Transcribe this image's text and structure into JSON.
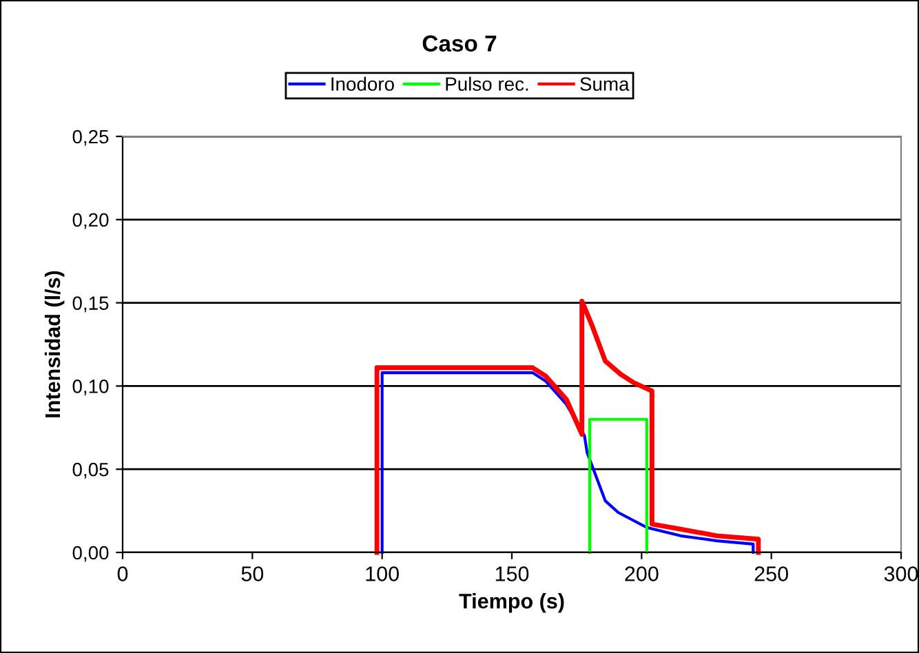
{
  "chart_data": {
    "type": "line",
    "title": "Caso 7",
    "xlabel": "Tiempo (s)",
    "ylabel": "Intensidad (l/s)",
    "xlim": [
      0,
      300
    ],
    "xticks": [
      0,
      50,
      100,
      150,
      200,
      250,
      300
    ],
    "ylim": [
      0,
      0.25
    ],
    "yticks": [
      {
        "value": 0,
        "label": "0,00"
      },
      {
        "value": 0.05,
        "label": "0,05"
      },
      {
        "value": 0.1,
        "label": "0,10"
      },
      {
        "value": 0.15,
        "label": "0,15"
      },
      {
        "value": 0.2,
        "label": "0,20"
      },
      {
        "value": 0.25,
        "label": "0,25"
      }
    ],
    "grid": "y",
    "legend": "top",
    "line_style": "solid",
    "marker": "none",
    "series": [
      {
        "name": "Inodoro",
        "color": "#0000ff",
        "x": [
          100,
          100,
          158,
          163,
          171,
          178,
          179,
          186,
          191,
          202,
          215,
          229,
          243,
          243
        ],
        "values": [
          0,
          0.108,
          0.108,
          0.103,
          0.089,
          0.07,
          0.06,
          0.031,
          0.024,
          0.015,
          0.01,
          0.007,
          0.005,
          0
        ]
      },
      {
        "name": "Pulso rec.",
        "color": "#00ff00",
        "x": [
          180,
          180,
          202,
          202
        ],
        "values": [
          0,
          0.08,
          0.08,
          0
        ]
      },
      {
        "name": "Suma",
        "color": "#ff0000",
        "x": [
          98,
          98,
          158,
          163,
          171,
          177,
          177,
          181,
          186,
          192,
          197,
          204,
          204,
          215,
          229,
          245,
          245
        ],
        "values": [
          0,
          0.111,
          0.111,
          0.106,
          0.092,
          0.071,
          0.151,
          0.136,
          0.115,
          0.107,
          0.102,
          0.097,
          0.017,
          0.014,
          0.01,
          0.008,
          0
        ]
      }
    ]
  }
}
